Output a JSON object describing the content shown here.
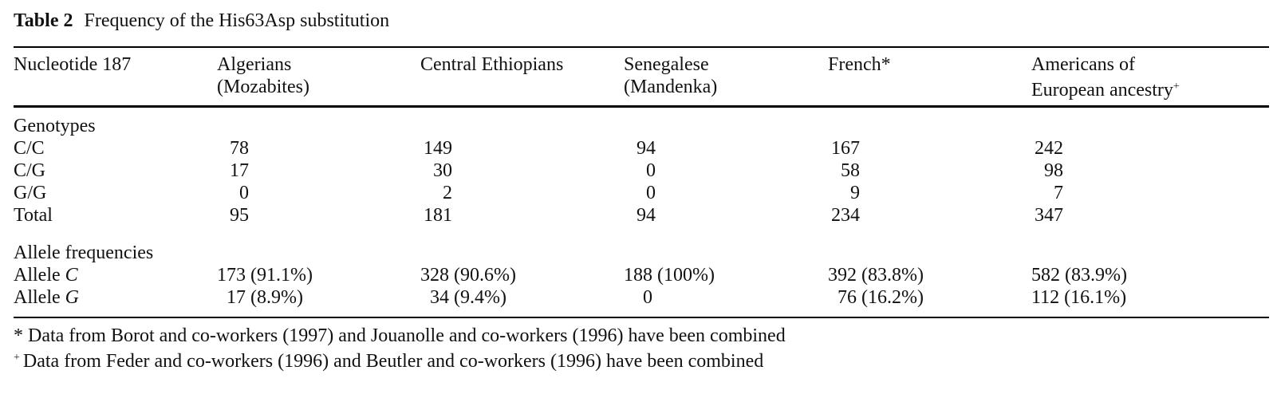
{
  "caption": {
    "label": "Table 2",
    "title": "Frequency of the His63Asp substitution"
  },
  "header": {
    "stub": "Nucleotide 187",
    "columns": [
      {
        "line1": "Algerians",
        "line2": "(Mozabites)",
        "mark": ""
      },
      {
        "line1": "Central Ethiopians",
        "line2": "",
        "mark": ""
      },
      {
        "line1": "Senegalese",
        "line2": "(Mandenka)",
        "mark": ""
      },
      {
        "line1": "French*",
        "line2": "",
        "mark": ""
      },
      {
        "line1": "Americans of",
        "line2": "European ancestry",
        "mark": "+"
      }
    ]
  },
  "genotypes": {
    "section_label": "Genotypes",
    "rows": [
      {
        "label": "C/C",
        "values": [
          "78",
          "149",
          "94",
          "167",
          "242"
        ]
      },
      {
        "label": "C/G",
        "values": [
          "17",
          "30",
          "0",
          "58",
          "98"
        ]
      },
      {
        "label": "G/G",
        "values": [
          "0",
          "2",
          "0",
          "9",
          "7"
        ]
      },
      {
        "label": "Total",
        "values": [
          "95",
          "181",
          "94",
          "234",
          "347"
        ]
      }
    ]
  },
  "alleles": {
    "section_label": "Allele frequencies",
    "rows": [
      {
        "label_prefix": "Allele",
        "label_letter": "C",
        "values": [
          "173 (91.1%)",
          "328 (90.6%)",
          "188 (100%)",
          "392 (83.8%)",
          "582 (83.9%)"
        ]
      },
      {
        "label_prefix": "Allele",
        "label_letter": "G",
        "values": [
          "17 (8.9%)",
          "34 (9.4%)",
          "0",
          "76 (16.2%)",
          "112 (16.1%)"
        ]
      }
    ]
  },
  "footnotes": [
    {
      "mark": "*",
      "text": "Data from Borot and co-workers (1997) and Jouanolle and co-workers (1996) have been combined"
    },
    {
      "mark": "+",
      "text": "Data from Feder and co-workers (1996) and Beutler and co-workers (1996) have been combined"
    }
  ]
}
